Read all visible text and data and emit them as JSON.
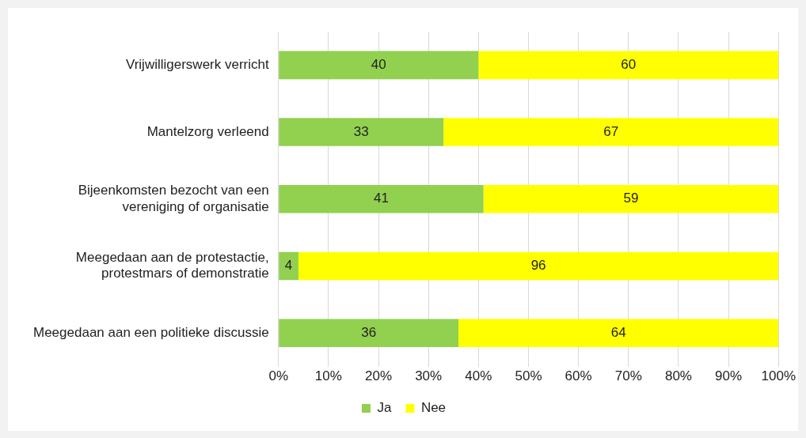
{
  "chart_data": {
    "type": "bar",
    "orientation": "horizontal",
    "stacked": true,
    "categories": [
      "Vrijwilligerswerk verricht",
      "Mantelzorg verleend",
      "Bijeenkomsten bezocht van een\nvereniging of organisatie",
      "Meegedaan aan de protestactie,\nprotestmars of demonstratie",
      "Meegedaan aan een politieke discussie"
    ],
    "series": [
      {
        "name": "Ja",
        "color": "#92d050",
        "values": [
          40,
          33,
          41,
          4,
          36
        ]
      },
      {
        "name": "Nee",
        "color": "#ffff00",
        "values": [
          60,
          67,
          59,
          96,
          64
        ]
      }
    ],
    "xlim": [
      0,
      100
    ],
    "xticks": [
      {
        "value": 0,
        "label": "0%"
      },
      {
        "value": 10,
        "label": "10%"
      },
      {
        "value": 20,
        "label": "20%"
      },
      {
        "value": 30,
        "label": "30%"
      },
      {
        "value": 40,
        "label": "40%"
      },
      {
        "value": 50,
        "label": "50%"
      },
      {
        "value": 60,
        "label": "60%"
      },
      {
        "value": 70,
        "label": "70%"
      },
      {
        "value": 80,
        "label": "80%"
      },
      {
        "value": 90,
        "label": "90%"
      },
      {
        "value": 100,
        "label": "100%"
      }
    ],
    "grid": "x",
    "legend": "bottom",
    "data_labels": true
  }
}
